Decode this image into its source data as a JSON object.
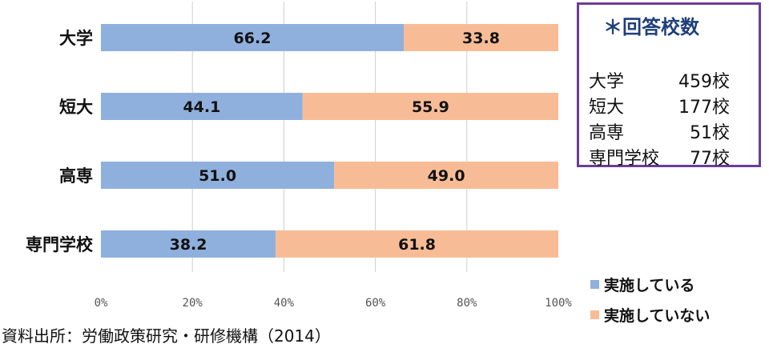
{
  "chart_data": {
    "type": "bar",
    "orientation": "horizontal",
    "stacked": true,
    "categories": [
      "大学",
      "短大",
      "高専",
      "専門学校"
    ],
    "series": [
      {
        "name": "実施している",
        "values": [
          66.2,
          44.1,
          51.0,
          38.2
        ],
        "color": "#8fb0dc"
      },
      {
        "name": "実施していない",
        "values": [
          33.8,
          55.9,
          49.0,
          61.8
        ],
        "color": "#f7bc96"
      }
    ],
    "value_labels": [
      [
        "66.2",
        "44.1",
        "51.0",
        "38.2"
      ],
      [
        "33.8",
        "55.9",
        "49.0",
        "61.8"
      ]
    ],
    "xlim": [
      0,
      100
    ],
    "xticks": [
      "0%",
      "20%",
      "40%",
      "60%",
      "80%",
      "100%"
    ],
    "grid": true,
    "legend_position": "bottom-right",
    "gridline_color": "#d0d0d0"
  },
  "info_box": {
    "title": "＊回答校数",
    "rows": [
      {
        "label": "大学",
        "count": "459校"
      },
      {
        "label": "短大",
        "count": "177校"
      },
      {
        "label": "高専",
        "count": "51校"
      },
      {
        "label": "専門学校",
        "count": "77校"
      }
    ],
    "border_color": "#6a3d98",
    "title_color": "#1f3f7a"
  },
  "source_note": "資料出所：労働政策研究・研修機構（2014）"
}
